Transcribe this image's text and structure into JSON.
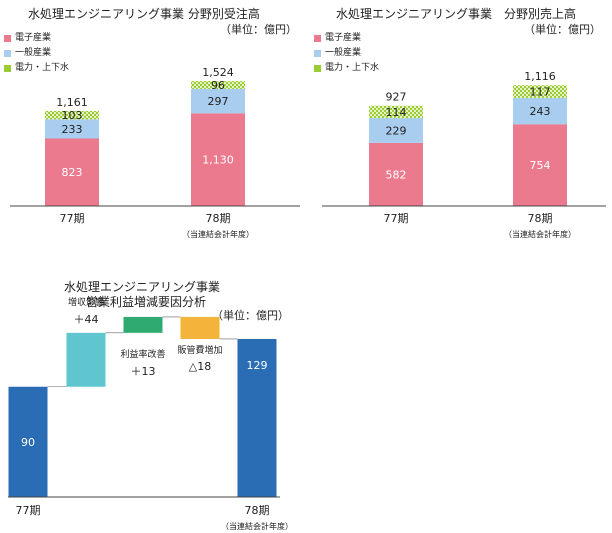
{
  "colors": {
    "electronics": "#ec7a8f",
    "general": "#a9cdee",
    "power_water": "#9ccc33",
    "axis": "#444444",
    "wf_start": "#2a6db5",
    "wf_end": "#2a6db5",
    "wf_up1": "#5fc6cf",
    "wf_up2": "#2fab72",
    "wf_down": "#f4b33a"
  },
  "charts": {
    "orders": {
      "title": "水処理エンジニアリング事業 分野別受注高",
      "unit": "（単位：億円）",
      "legend": [
        "電子産業",
        "一般産業",
        "電力・上下水"
      ],
      "cat_labels": [
        "77期",
        "78期"
      ],
      "cat_sublabels": [
        "",
        "（当連結会計年度）"
      ]
    },
    "sales": {
      "title": "水処理エンジニアリング事業　分野別売上高",
      "unit": "（単位：億円）",
      "legend": [
        "電子産業",
        "一般産業",
        "電力・上下水"
      ],
      "cat_labels": [
        "77期",
        "78期"
      ],
      "cat_sublabels": [
        "",
        "（当連結会計年度）"
      ]
    },
    "profit": {
      "title_line1": "水処理エンジニアリング事業",
      "title_line2": "営業利益増減要因分析",
      "unit": "（単位：億円）",
      "start_label": "77期",
      "end_label": "78期",
      "end_sublabel": "（当連結会計年度）"
    }
  },
  "chart_data": [
    {
      "type": "bar",
      "stacked": true,
      "title": "水処理エンジニアリング事業 分野別受注高",
      "categories": [
        "77期",
        "78期"
      ],
      "series": [
        {
          "name": "電子産業",
          "values": [
            823,
            1130
          ],
          "labels": [
            "823",
            "1,130"
          ]
        },
        {
          "name": "一般産業",
          "values": [
            233,
            297
          ],
          "labels": [
            "233",
            "297"
          ]
        },
        {
          "name": "電力・上下水",
          "values": [
            103,
            96
          ],
          "labels": [
            "103",
            "96"
          ]
        }
      ],
      "totals": [
        1161,
        1524
      ],
      "total_labels": [
        "1,161",
        "1,524"
      ],
      "ylim": [
        0,
        1524
      ],
      "legend_position": "top-left"
    },
    {
      "type": "bar",
      "stacked": true,
      "title": "水処理エンジニアリング事業　分野別売上高",
      "categories": [
        "77期",
        "78期"
      ],
      "series": [
        {
          "name": "電子産業",
          "values": [
            582,
            754
          ],
          "labels": [
            "582",
            "754"
          ]
        },
        {
          "name": "一般産業",
          "values": [
            229,
            243
          ],
          "labels": [
            "229",
            "243"
          ]
        },
        {
          "name": "電力・上下水",
          "values": [
            114,
            117
          ],
          "labels": [
            "114",
            "117"
          ]
        }
      ],
      "totals": [
        927,
        1116
      ],
      "total_labels": [
        "927",
        "1,116"
      ],
      "ylim": [
        0,
        1116
      ],
      "legend_position": "top-left"
    },
    {
      "type": "bar",
      "waterfall": true,
      "title": "水処理エンジニアリング事業 営業利益増減要因分析",
      "steps": [
        {
          "label": "77期",
          "value": 90,
          "kind": "total",
          "value_label": "90"
        },
        {
          "label": "増収影響",
          "value": 44,
          "kind": "increase",
          "value_label": "＋44"
        },
        {
          "label": "利益率改善",
          "value": 13,
          "kind": "increase",
          "value_label": "＋13"
        },
        {
          "label": "販管費増加",
          "value": -18,
          "kind": "decrease",
          "value_label": "△18"
        },
        {
          "label": "78期",
          "value": 129,
          "kind": "total",
          "value_label": "129"
        }
      ],
      "ylim": [
        0,
        147
      ]
    }
  ]
}
